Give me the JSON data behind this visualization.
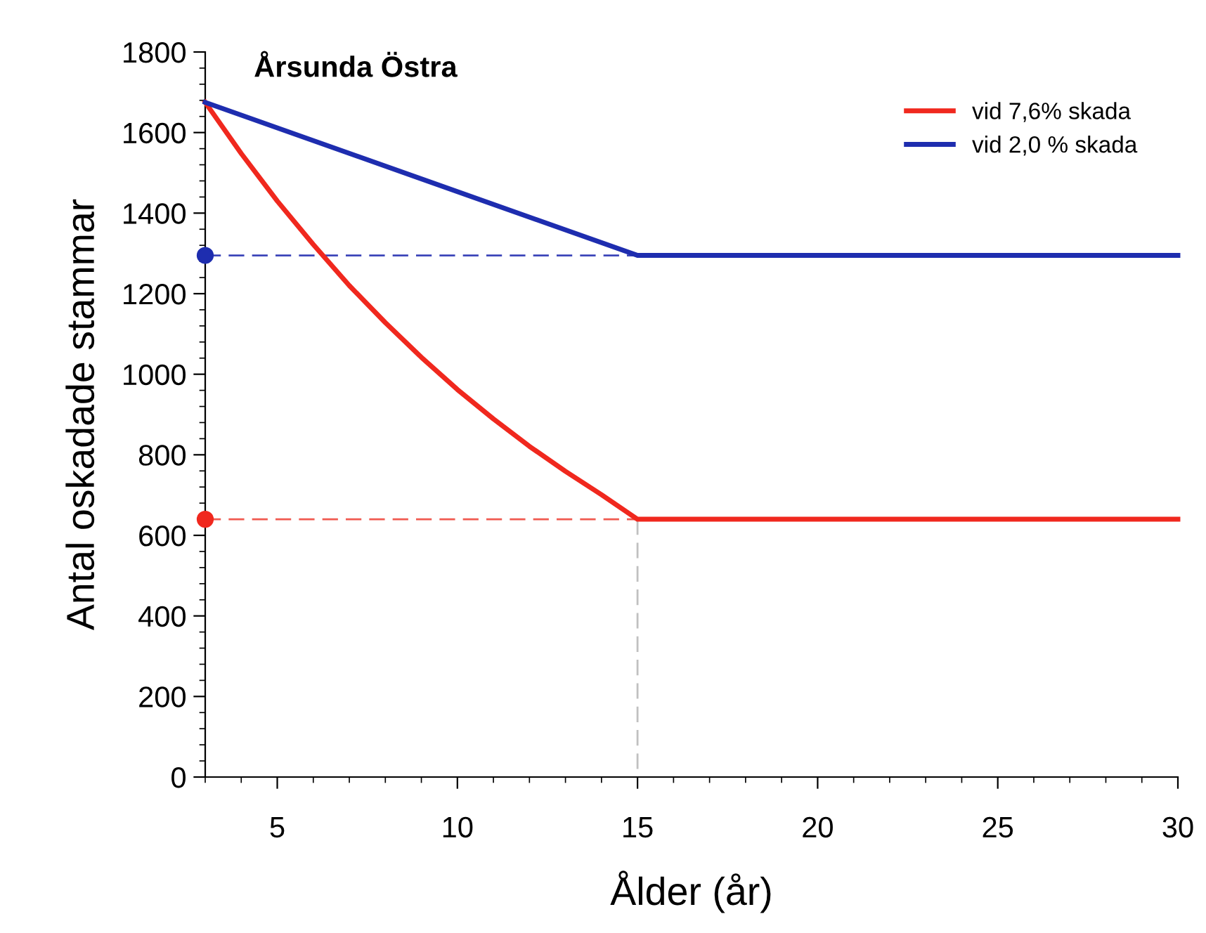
{
  "chart_data": {
    "type": "line",
    "title": "Årsunda Östra",
    "xlabel": "Ålder (år)",
    "ylabel": "Antal oskadade stammar",
    "xlim": [
      3,
      30
    ],
    "xticks": [
      5,
      10,
      15,
      20,
      25,
      30
    ],
    "ylim": [
      0,
      1800
    ],
    "yticks": [
      0,
      200,
      400,
      600,
      800,
      1000,
      1200,
      1400,
      1600,
      1800
    ],
    "grid": false,
    "legend": "top right",
    "marker": "none",
    "series": [
      {
        "name": "vid 7,6% skada",
        "color": "#f0281e",
        "x": [
          3,
          4,
          5,
          6,
          7,
          8,
          9,
          10,
          11,
          12,
          13,
          14,
          15,
          30
        ],
        "values": [
          1675,
          1548,
          1430,
          1322,
          1220,
          1128,
          1042,
          962,
          889,
          821,
          759,
          701,
          640,
          640
        ]
      },
      {
        "name": "vid 2,0 % skada",
        "color": "#1e2daf",
        "x": [
          3,
          15,
          30
        ],
        "values": [
          1675,
          1295,
          1295
        ]
      },
      {
        "color": "#3c46b9",
        "x": [
          3,
          15
        ],
        "values": [
          1295,
          1295
        ],
        "line_style": "dashed"
      },
      {
        "color": "#f05a50",
        "x": [
          3,
          15
        ],
        "values": [
          640,
          640
        ],
        "line_style": "dashed"
      },
      {
        "color": "#c0c0c0",
        "x": [
          15,
          15
        ],
        "values": [
          640,
          0
        ],
        "line_style": "dashed"
      },
      {
        "type": "scatter",
        "color": "#1e2daf",
        "x": [
          3
        ],
        "values": [
          1295
        ],
        "marker": "circle"
      },
      {
        "type": "scatter",
        "color": "#f0281e",
        "x": [
          3
        ],
        "values": [
          640
        ],
        "marker": "circle"
      }
    ]
  }
}
